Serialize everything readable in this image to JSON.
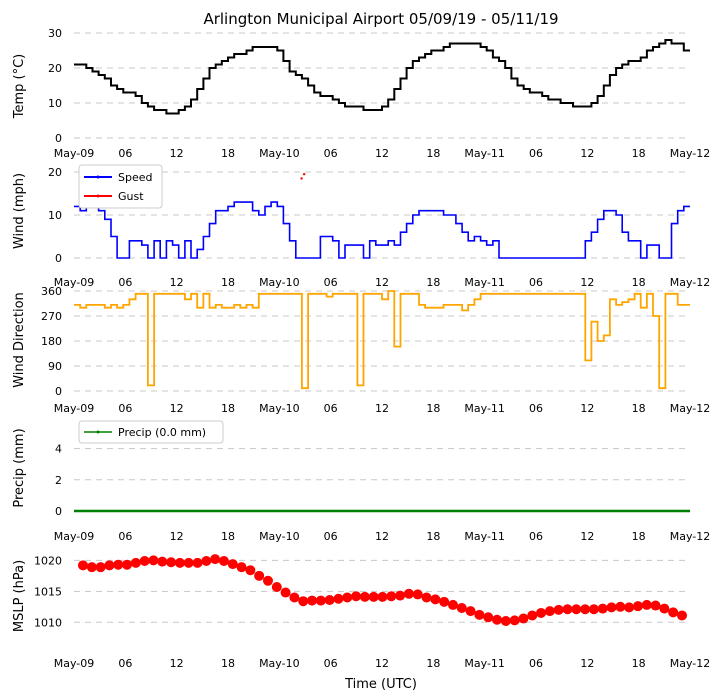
{
  "figure": {
    "title": "Arlington Municipal Airport 05/09/19 - 05/11/19",
    "xlabel": "Time (UTC)",
    "x_ticks": [
      "May-09",
      "06",
      "12",
      "18",
      "May-10",
      "06",
      "12",
      "18",
      "May-11",
      "06",
      "12",
      "18",
      "May-12"
    ],
    "x_range_hours": [
      0,
      72
    ]
  },
  "chart_data": [
    {
      "id": "temp",
      "type": "line",
      "ylabel": "Temp (°C)",
      "ylim": [
        0,
        30
      ],
      "yticks": [
        0,
        10,
        20,
        30
      ],
      "color": "#000000",
      "step_hours": 1,
      "values": [
        21,
        21,
        20,
        19,
        18,
        17,
        15,
        14,
        13,
        13,
        12,
        10,
        9,
        8,
        8,
        7,
        7,
        8,
        9,
        11,
        14,
        17,
        20,
        21,
        22,
        23,
        24,
        24,
        25,
        26,
        26,
        26,
        26,
        25,
        22,
        19,
        18,
        17,
        15,
        13,
        12,
        12,
        11,
        10,
        9,
        9,
        9,
        8,
        8,
        8,
        9,
        11,
        14,
        17,
        20,
        22,
        23,
        24,
        25,
        25,
        26,
        27,
        27,
        27,
        27,
        27,
        26,
        25,
        23,
        22,
        20,
        17,
        15,
        14,
        13,
        13,
        12,
        11,
        11,
        10,
        10,
        9,
        9,
        9,
        10,
        12,
        15,
        18,
        20,
        21,
        22,
        22,
        23,
        25,
        26,
        27,
        28,
        27,
        27,
        25
      ]
    },
    {
      "id": "wind",
      "type": "line",
      "ylabel": "Wind (mph)",
      "ylim": [
        0,
        20
      ],
      "yticks": [
        0,
        10,
        20
      ],
      "legend": [
        "Speed",
        "Gust"
      ],
      "series": [
        {
          "name": "Speed",
          "color": "#0000ff",
          "values": [
            12,
            11,
            12,
            12,
            11,
            9,
            5,
            0,
            0,
            4,
            4,
            3,
            0,
            4,
            0,
            4,
            3,
            0,
            4,
            0,
            2,
            5,
            8,
            11,
            11,
            12,
            13,
            13,
            13,
            11,
            10,
            12,
            13,
            12,
            8,
            4,
            0,
            0,
            0,
            0,
            5,
            5,
            4,
            0,
            3,
            3,
            3,
            0,
            4,
            3,
            3,
            4,
            3,
            6,
            8,
            10,
            11,
            11,
            11,
            11,
            10,
            10,
            8,
            6,
            4,
            5,
            4,
            3,
            4,
            0,
            0,
            0,
            0,
            0,
            0,
            0,
            0,
            0,
            0,
            0,
            0,
            0,
            0,
            4,
            6,
            9,
            11,
            11,
            10,
            6,
            4,
            4,
            0,
            3,
            3,
            0,
            0,
            8,
            11,
            12
          ]
        },
        {
          "name": "Gust",
          "color": "#ff0000",
          "points": [
            {
              "x": 26.6,
              "y": 18.5
            },
            {
              "x": 26.9,
              "y": 19.5
            }
          ]
        }
      ]
    },
    {
      "id": "direction",
      "type": "line",
      "ylabel": "Wind Direction",
      "ylim": [
        0,
        360
      ],
      "yticks": [
        0,
        90,
        180,
        270,
        360
      ],
      "color": "#ffa500",
      "values": [
        310,
        300,
        310,
        310,
        310,
        300,
        310,
        300,
        310,
        330,
        350,
        350,
        20,
        350,
        350,
        350,
        350,
        350,
        330,
        350,
        300,
        350,
        300,
        310,
        300,
        300,
        310,
        300,
        310,
        300,
        350,
        350,
        350,
        350,
        350,
        350,
        350,
        10,
        350,
        350,
        350,
        340,
        350,
        350,
        350,
        350,
        20,
        350,
        350,
        350,
        330,
        360,
        160,
        350,
        350,
        350,
        310,
        300,
        300,
        300,
        310,
        310,
        310,
        290,
        310,
        330,
        350,
        350,
        350,
        350,
        350,
        350,
        350,
        350,
        350,
        350,
        350,
        350,
        350,
        350,
        350,
        350,
        350,
        110,
        250,
        180,
        200,
        330,
        310,
        320,
        330,
        350,
        300,
        350,
        270,
        10,
        350,
        350,
        310,
        310
      ]
    },
    {
      "id": "precip",
      "type": "line",
      "ylabel": "Precip (mm)",
      "ylim": [
        0,
        5
      ],
      "yticks": [
        0,
        2,
        4
      ],
      "color": "#008000",
      "legend": [
        "Precip (0.0 mm)"
      ],
      "values": [
        0,
        0
      ]
    },
    {
      "id": "mslp",
      "type": "scatter",
      "ylabel": "MSLP (hPa)",
      "ylim": [
        1006,
        1022
      ],
      "yticks": [
        1010,
        1015,
        1020
      ],
      "color": "#ff0000",
      "values": [
        1019.2,
        1018.9,
        1018.9,
        1019.2,
        1019.3,
        1019.3,
        1019.6,
        1019.9,
        1020.0,
        1019.8,
        1019.7,
        1019.6,
        1019.6,
        1019.6,
        1019.9,
        1020.2,
        1019.9,
        1019.4,
        1018.9,
        1018.4,
        1017.5,
        1016.7,
        1015.7,
        1014.8,
        1014.0,
        1013.4,
        1013.5,
        1013.5,
        1013.6,
        1013.8,
        1014.0,
        1014.2,
        1014.1,
        1014.1,
        1014.1,
        1014.2,
        1014.3,
        1014.6,
        1014.5,
        1014.0,
        1013.7,
        1013.3,
        1012.8,
        1012.3,
        1011.8,
        1011.2,
        1010.8,
        1010.4,
        1010.2,
        1010.3,
        1010.6,
        1011.1,
        1011.5,
        1011.8,
        1012.0,
        1012.1,
        1012.1,
        1012.1,
        1012.1,
        1012.2,
        1012.4,
        1012.5,
        1012.4,
        1012.6,
        1012.8,
        1012.7,
        1012.2,
        1011.6,
        1011.1
      ]
    }
  ]
}
